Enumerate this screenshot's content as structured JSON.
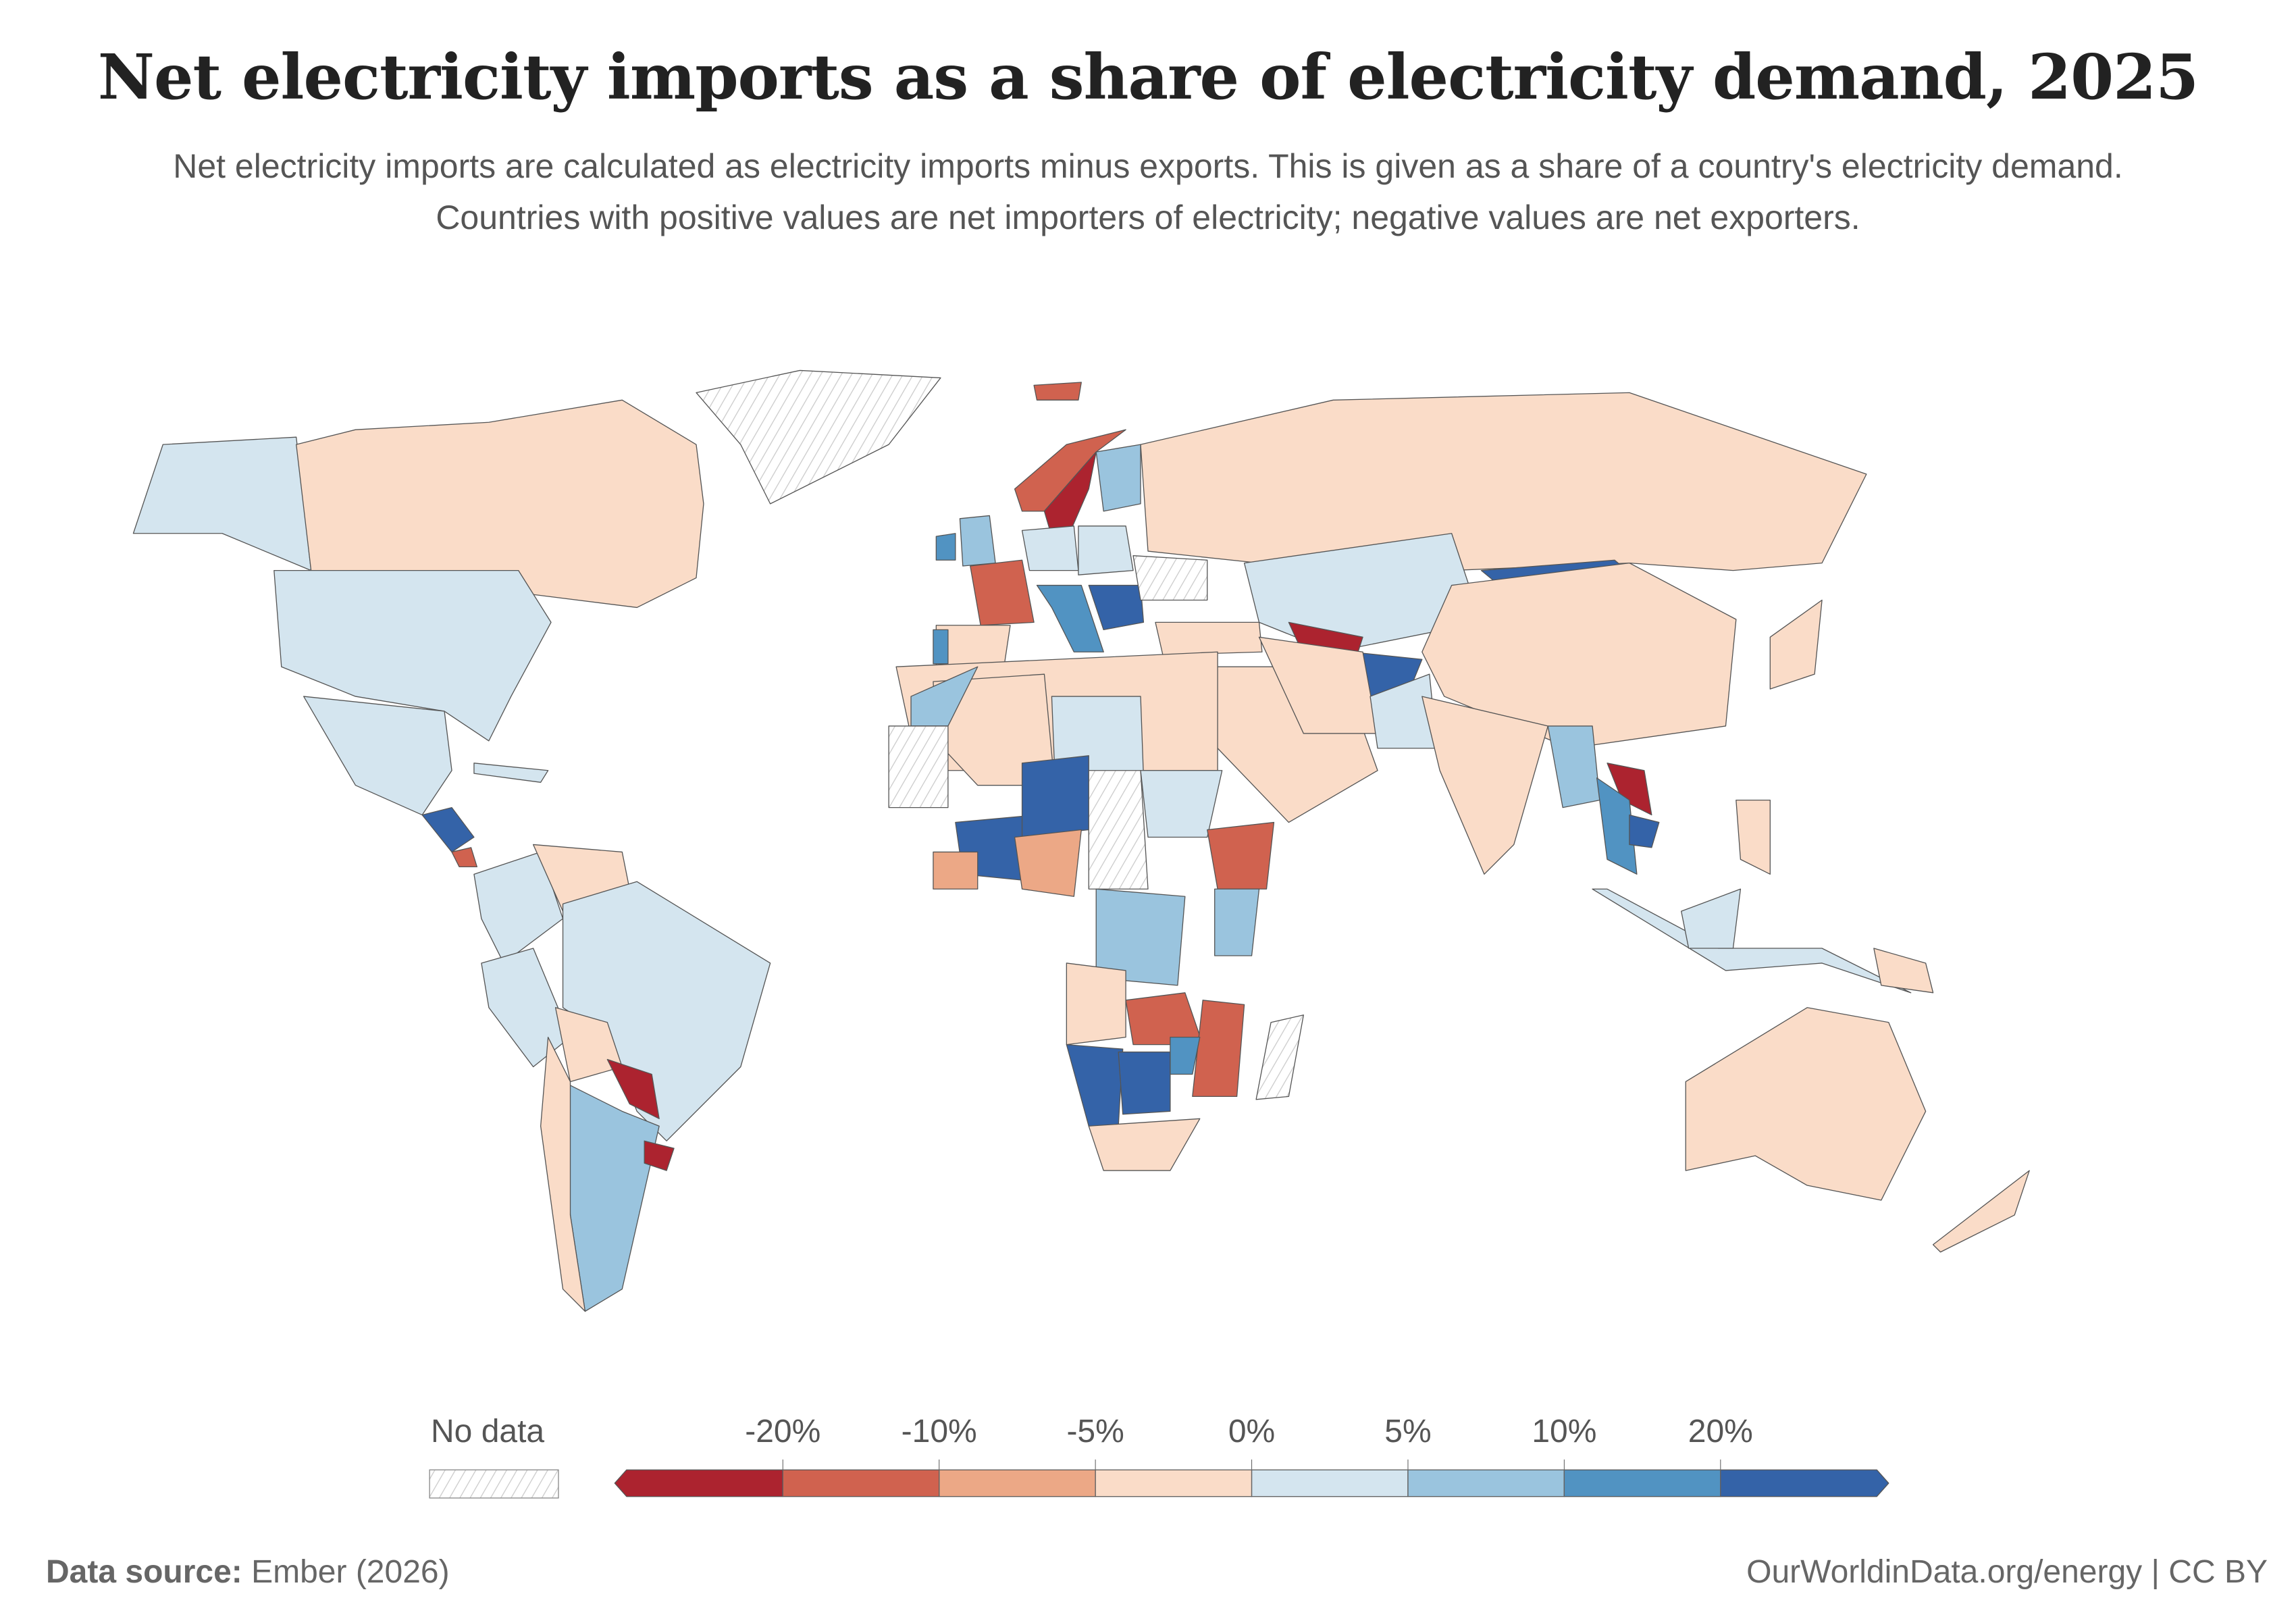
{
  "title": "Net electricity imports as a share of electricity demand, 2025",
  "subtitle": "Net electricity imports are calculated as electricity imports minus exports. This is given as a share of a country's electricity demand. Countries with positive values are net importers of electricity; negative values are net exporters.",
  "legend": {
    "no_data_label": "No data",
    "ticks": [
      "-20%",
      "-10%",
      "-5%",
      "0%",
      "5%",
      "10%",
      "20%"
    ],
    "bins": [
      {
        "range": "< -20%",
        "color": "#ac232f"
      },
      {
        "range": "-20% to -10%",
        "color": "#d0624f"
      },
      {
        "range": "-10% to -5%",
        "color": "#eca886"
      },
      {
        "range": "-5% to 0%",
        "color": "#fadcc8"
      },
      {
        "range": "0% to 5%",
        "color": "#d4e5ef"
      },
      {
        "range": "5% to 10%",
        "color": "#9ac4de"
      },
      {
        "range": "10% to 20%",
        "color": "#5193c2"
      },
      {
        "range": "> 20%",
        "color": "#3463a8"
      }
    ],
    "no_data_color": "#d0d0d0"
  },
  "footer": {
    "source_label": "Data source:",
    "source": "Ember (2026)",
    "credit": "OurWorldinData.org/energy | CC BY"
  }
}
